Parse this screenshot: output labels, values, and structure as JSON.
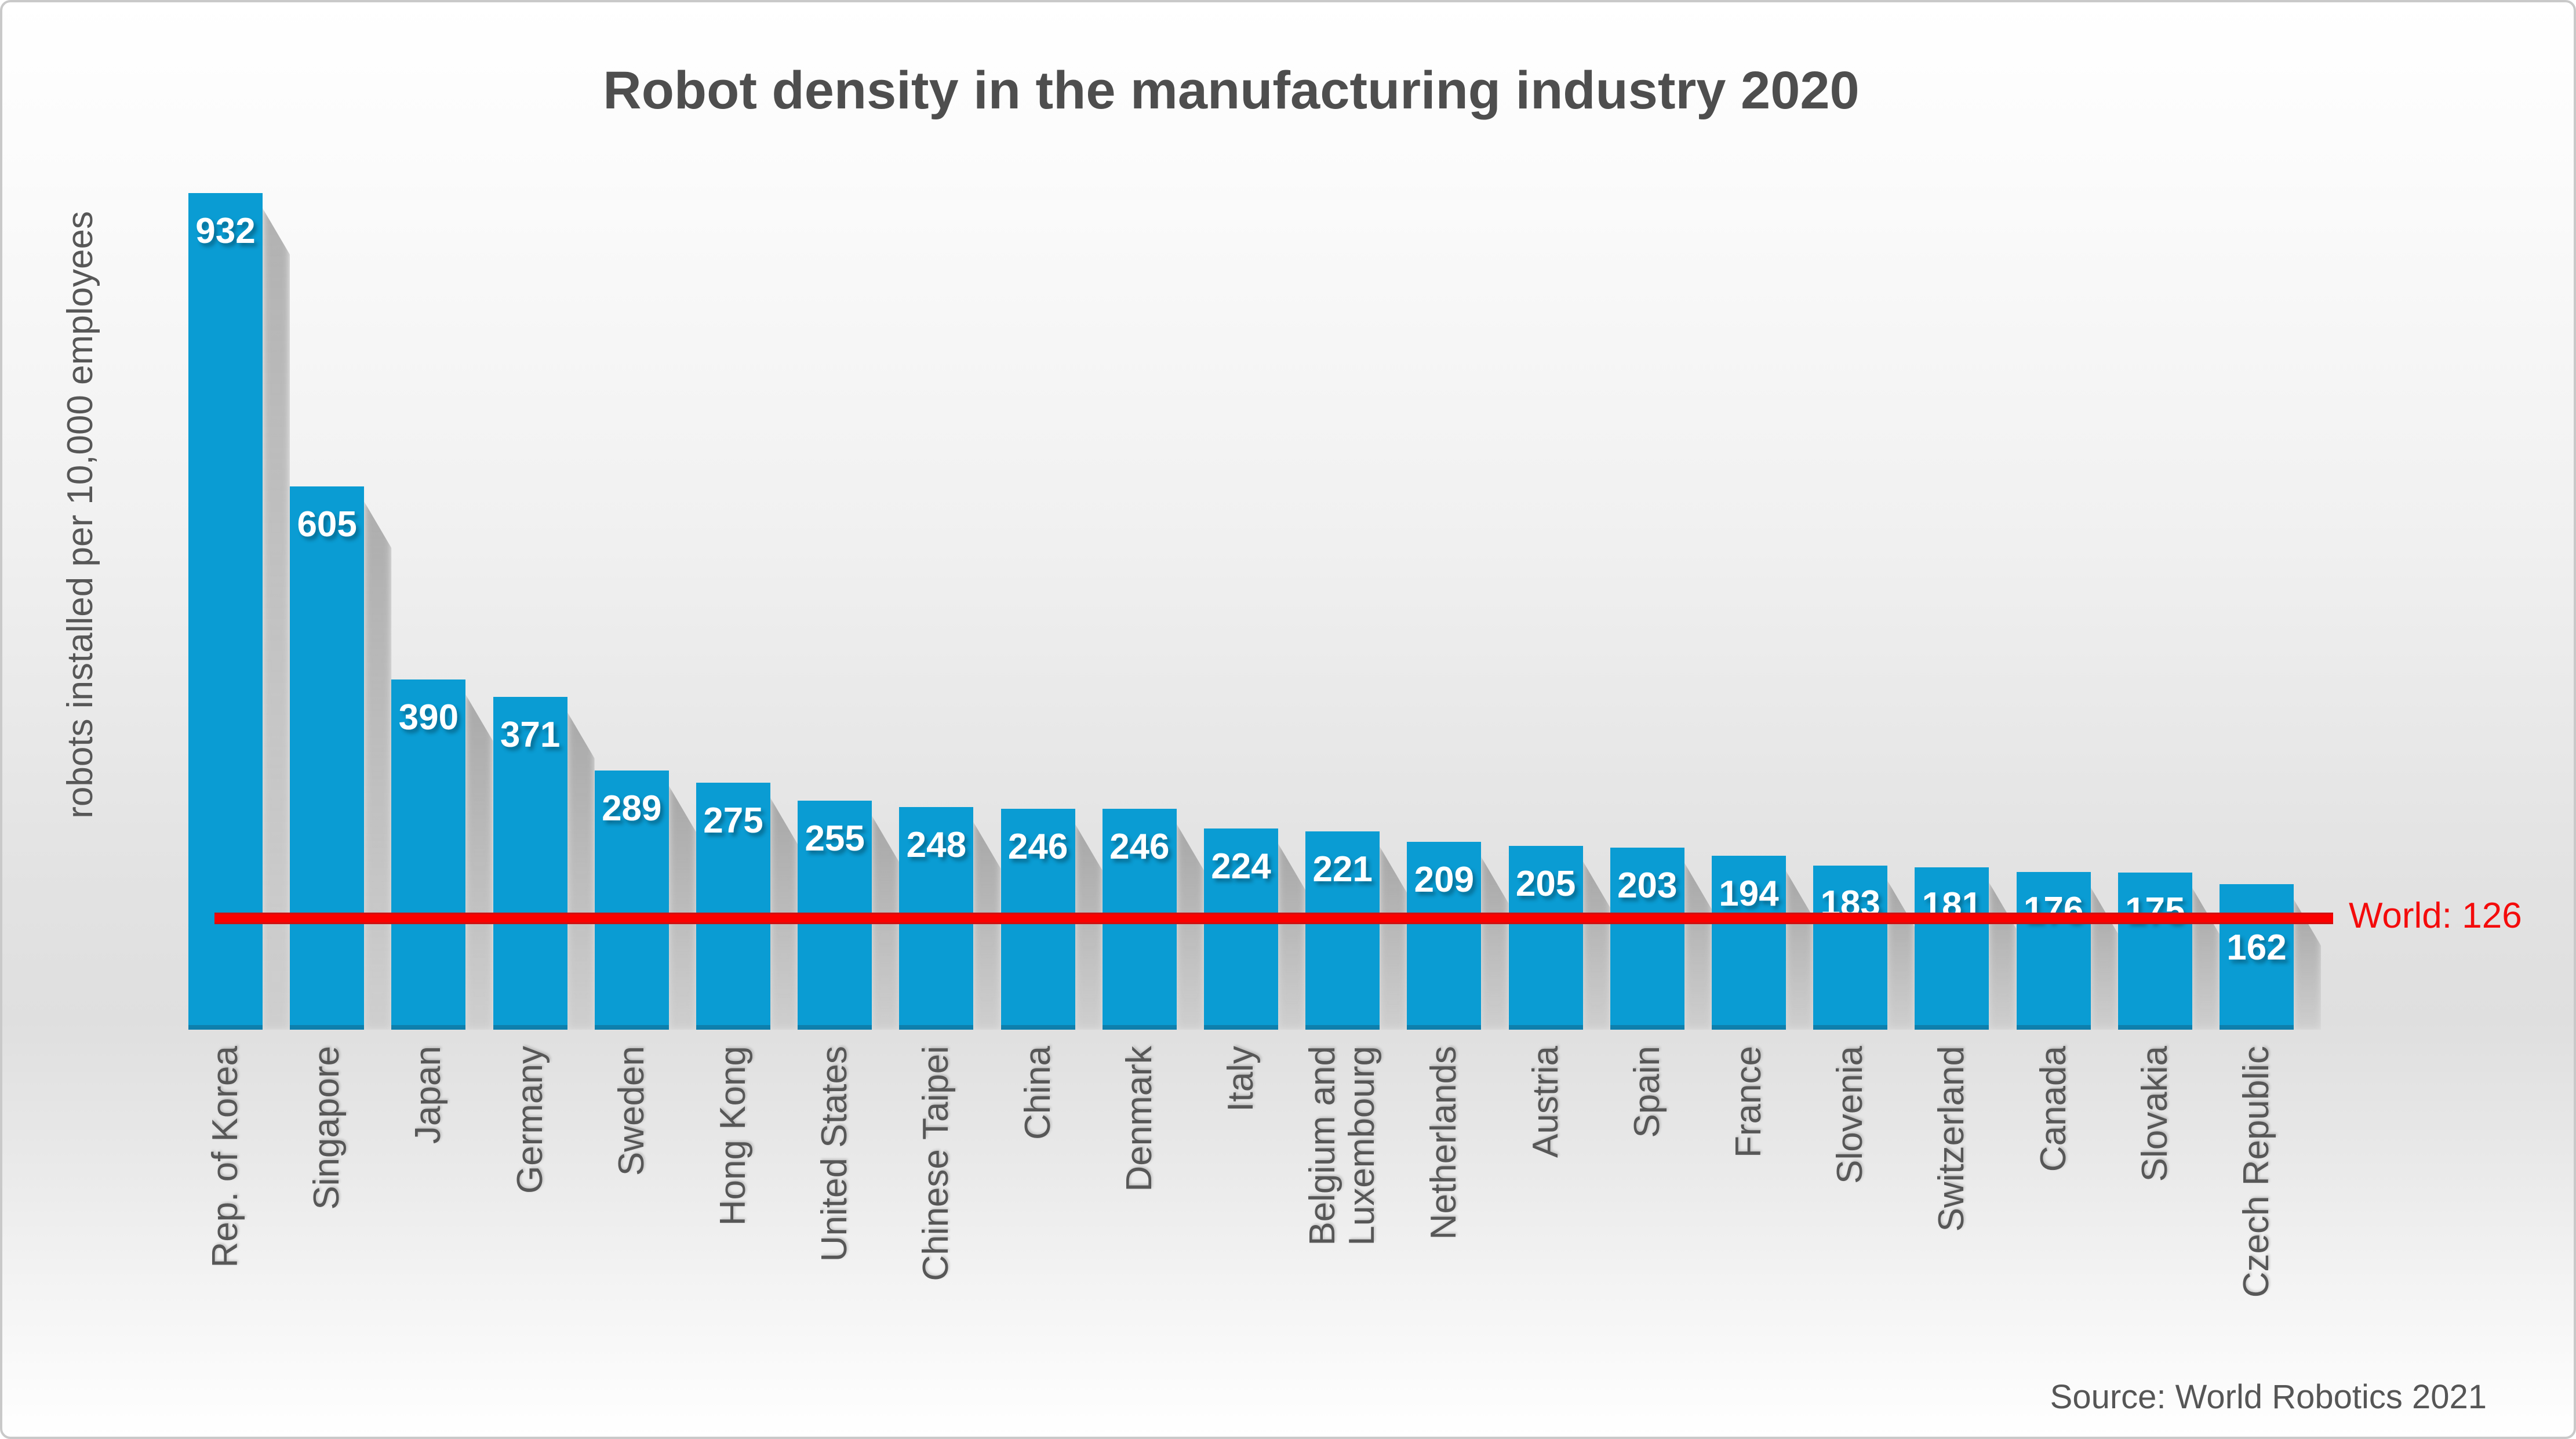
{
  "title": "Robot density in the manufacturing industry 2020",
  "y_axis_label": "robots installed per 10,000 employees",
  "source_note": "Source: World Robotics 2021",
  "world_reference": {
    "label": "World: 126",
    "value": 126
  },
  "colors": {
    "bar": "#0a9cd3",
    "bar_bottom_edge": "#0e7fad",
    "value_label_text": "#ffffff",
    "axis_text": "#575757",
    "title_text": "#4e4e4e",
    "reference_line": "#fb0000",
    "reference_text": "#f40b0b"
  },
  "chart_data": {
    "type": "bar",
    "title": "Robot density in the manufacturing industry 2020",
    "ylabel": "robots installed per 10,000 employees",
    "xlabel": "",
    "categories": [
      "Rep. of Korea",
      "Singapore",
      "Japan",
      "Germany",
      "Sweden",
      "Hong Kong",
      "United States",
      "Chinese Taipei",
      "China",
      "Denmark",
      "Italy",
      "Belgium and Luxembourg",
      "Netherlands",
      "Austria",
      "Spain",
      "France",
      "Slovenia",
      "Switzerland",
      "Canada",
      "Slovakia",
      "Czech Republic"
    ],
    "values": [
      932,
      605,
      390,
      371,
      289,
      275,
      255,
      248,
      246,
      246,
      224,
      221,
      209,
      205,
      203,
      194,
      183,
      181,
      176,
      175,
      162
    ],
    "value_labels_position": "inside-top",
    "reference_line": {
      "label": "World: 126",
      "value": 126
    },
    "ylim": [
      0,
      950
    ],
    "grid": false,
    "legend": "none",
    "source": "Source: World Robotics 2021"
  }
}
